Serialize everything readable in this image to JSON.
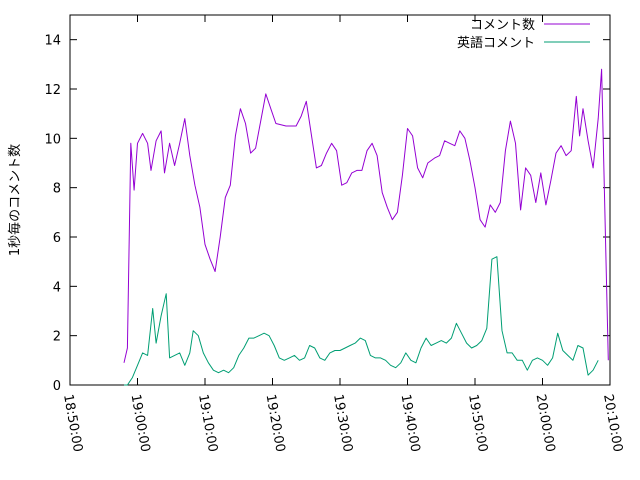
{
  "chart_data": {
    "type": "line",
    "title": "",
    "xlabel": "",
    "ylabel": "1秒毎のコメント数",
    "xlim": [
      "18:50:00",
      "20:10:00"
    ],
    "ylim": [
      0,
      15
    ],
    "x_ticks": [
      "18:50:00",
      "19:00:00",
      "19:10:00",
      "19:20:00",
      "19:30:00",
      "19:40:00",
      "19:50:00",
      "20:00:00",
      "20:10:00"
    ],
    "y_ticks": [
      0,
      2,
      4,
      6,
      8,
      10,
      12,
      14
    ],
    "grid": false,
    "legend_position": "top-right",
    "series": [
      {
        "name": "コメント数",
        "color": "#9400d3",
        "points": [
          [
            "18:58:00",
            0.9
          ],
          [
            "18:58:30",
            1.5
          ],
          [
            "18:59:00",
            9.8
          ],
          [
            "18:59:30",
            7.9
          ],
          [
            "19:00:00",
            9.8
          ],
          [
            "19:00:45",
            10.2
          ],
          [
            "19:01:30",
            9.8
          ],
          [
            "19:02:00",
            8.7
          ],
          [
            "19:02:45",
            9.9
          ],
          [
            "19:03:30",
            10.3
          ],
          [
            "19:04:00",
            8.6
          ],
          [
            "19:04:45",
            9.8
          ],
          [
            "19:05:30",
            8.9
          ],
          [
            "19:06:15",
            9.8
          ],
          [
            "19:07:00",
            10.8
          ],
          [
            "19:07:45",
            9.3
          ],
          [
            "19:08:30",
            8.1
          ],
          [
            "19:09:15",
            7.2
          ],
          [
            "19:10:00",
            5.7
          ],
          [
            "19:10:45",
            5.1
          ],
          [
            "19:11:30",
            4.6
          ],
          [
            "19:12:15",
            6.0
          ],
          [
            "19:13:00",
            7.6
          ],
          [
            "19:13:45",
            8.1
          ],
          [
            "19:14:30",
            10.1
          ],
          [
            "19:15:15",
            11.2
          ],
          [
            "19:16:00",
            10.6
          ],
          [
            "19:16:45",
            9.4
          ],
          [
            "19:17:30",
            9.6
          ],
          [
            "19:18:15",
            10.7
          ],
          [
            "19:19:00",
            11.8
          ],
          [
            "19:19:45",
            11.2
          ],
          [
            "19:20:30",
            10.6
          ],
          [
            "19:22:00",
            10.5
          ],
          [
            "19:23:30",
            10.5
          ],
          [
            "19:24:15",
            10.9
          ],
          [
            "19:25:00",
            11.5
          ],
          [
            "19:26:30",
            8.8
          ],
          [
            "19:27:15",
            8.9
          ],
          [
            "19:28:00",
            9.4
          ],
          [
            "19:28:45",
            9.8
          ],
          [
            "19:29:30",
            9.5
          ],
          [
            "19:30:15",
            8.1
          ],
          [
            "19:31:00",
            8.2
          ],
          [
            "19:31:45",
            8.6
          ],
          [
            "19:32:30",
            8.7
          ],
          [
            "19:33:15",
            8.7
          ],
          [
            "19:34:00",
            9.5
          ],
          [
            "19:34:45",
            9.8
          ],
          [
            "19:35:30",
            9.3
          ],
          [
            "19:36:15",
            7.8
          ],
          [
            "19:37:00",
            7.2
          ],
          [
            "19:37:45",
            6.7
          ],
          [
            "19:38:30",
            7.0
          ],
          [
            "19:39:15",
            8.5
          ],
          [
            "19:40:00",
            10.4
          ],
          [
            "19:40:45",
            10.1
          ],
          [
            "19:41:30",
            8.8
          ],
          [
            "19:42:15",
            8.4
          ],
          [
            "19:43:00",
            9.0
          ],
          [
            "19:44:00",
            9.2
          ],
          [
            "19:44:45",
            9.3
          ],
          [
            "19:45:30",
            9.9
          ],
          [
            "19:46:15",
            9.8
          ],
          [
            "19:47:00",
            9.7
          ],
          [
            "19:47:45",
            10.3
          ],
          [
            "19:48:30",
            10.0
          ],
          [
            "19:49:15",
            9.1
          ],
          [
            "19:50:00",
            8.0
          ],
          [
            "19:50:45",
            6.7
          ],
          [
            "19:51:30",
            6.4
          ],
          [
            "19:52:15",
            7.3
          ],
          [
            "19:53:00",
            7.0
          ],
          [
            "19:53:45",
            7.4
          ],
          [
            "19:54:30",
            9.5
          ],
          [
            "19:55:15",
            10.7
          ],
          [
            "19:56:00",
            9.8
          ],
          [
            "19:56:45",
            7.1
          ],
          [
            "19:57:30",
            8.8
          ],
          [
            "19:58:15",
            8.5
          ],
          [
            "19:59:00",
            7.4
          ],
          [
            "19:59:45",
            8.6
          ],
          [
            "20:00:30",
            7.3
          ],
          [
            "20:01:15",
            8.3
          ],
          [
            "20:02:00",
            9.4
          ],
          [
            "20:02:45",
            9.7
          ],
          [
            "20:03:30",
            9.3
          ],
          [
            "20:04:15",
            9.5
          ],
          [
            "20:05:00",
            11.7
          ],
          [
            "20:05:30",
            10.1
          ],
          [
            "20:06:00",
            11.2
          ],
          [
            "20:06:45",
            9.9
          ],
          [
            "20:07:30",
            8.8
          ],
          [
            "20:08:15",
            10.8
          ],
          [
            "20:08:45",
            12.8
          ],
          [
            "20:09:45",
            1.0
          ]
        ]
      },
      {
        "name": "英語コメント",
        "color": "#009e73",
        "points": [
          [
            "18:58:00",
            0.0
          ],
          [
            "18:58:30",
            0.0
          ],
          [
            "18:59:15",
            0.3
          ],
          [
            "19:00:00",
            0.8
          ],
          [
            "19:00:45",
            1.3
          ],
          [
            "19:01:30",
            1.2
          ],
          [
            "19:02:15",
            3.1
          ],
          [
            "19:02:45",
            1.7
          ],
          [
            "19:03:30",
            2.8
          ],
          [
            "19:04:15",
            3.7
          ],
          [
            "19:04:45",
            1.1
          ],
          [
            "19:05:30",
            1.2
          ],
          [
            "19:06:15",
            1.3
          ],
          [
            "19:07:00",
            0.8
          ],
          [
            "19:07:45",
            1.3
          ],
          [
            "19:08:15",
            2.2
          ],
          [
            "19:09:00",
            2.0
          ],
          [
            "19:09:45",
            1.3
          ],
          [
            "19:10:30",
            0.9
          ],
          [
            "19:11:15",
            0.6
          ],
          [
            "19:12:00",
            0.5
          ],
          [
            "19:12:45",
            0.6
          ],
          [
            "19:13:30",
            0.5
          ],
          [
            "19:14:15",
            0.7
          ],
          [
            "19:15:00",
            1.2
          ],
          [
            "19:15:45",
            1.5
          ],
          [
            "19:16:30",
            1.9
          ],
          [
            "19:17:15",
            1.9
          ],
          [
            "19:18:00",
            2.0
          ],
          [
            "19:18:45",
            2.1
          ],
          [
            "19:19:30",
            2.0
          ],
          [
            "19:20:15",
            1.6
          ],
          [
            "19:21:00",
            1.1
          ],
          [
            "19:21:45",
            1.0
          ],
          [
            "19:22:30",
            1.1
          ],
          [
            "19:23:15",
            1.2
          ],
          [
            "19:24:00",
            1.0
          ],
          [
            "19:24:45",
            1.1
          ],
          [
            "19:25:30",
            1.6
          ],
          [
            "19:26:15",
            1.5
          ],
          [
            "19:27:00",
            1.1
          ],
          [
            "19:27:45",
            1.0
          ],
          [
            "19:28:30",
            1.3
          ],
          [
            "19:29:15",
            1.4
          ],
          [
            "19:30:00",
            1.4
          ],
          [
            "19:30:45",
            1.5
          ],
          [
            "19:31:30",
            1.6
          ],
          [
            "19:32:15",
            1.7
          ],
          [
            "19:33:00",
            1.9
          ],
          [
            "19:33:45",
            1.8
          ],
          [
            "19:34:30",
            1.2
          ],
          [
            "19:35:15",
            1.1
          ],
          [
            "19:36:00",
            1.1
          ],
          [
            "19:36:45",
            1.0
          ],
          [
            "19:37:30",
            0.8
          ],
          [
            "19:38:15",
            0.7
          ],
          [
            "19:39:00",
            0.9
          ],
          [
            "19:39:45",
            1.3
          ],
          [
            "19:40:30",
            1.0
          ],
          [
            "19:41:15",
            0.9
          ],
          [
            "19:42:00",
            1.5
          ],
          [
            "19:42:45",
            1.9
          ],
          [
            "19:43:30",
            1.6
          ],
          [
            "19:44:15",
            1.7
          ],
          [
            "19:45:00",
            1.8
          ],
          [
            "19:45:45",
            1.7
          ],
          [
            "19:46:30",
            1.9
          ],
          [
            "19:47:15",
            2.5
          ],
          [
            "19:48:00",
            2.1
          ],
          [
            "19:48:45",
            1.7
          ],
          [
            "19:49:30",
            1.5
          ],
          [
            "19:50:15",
            1.6
          ],
          [
            "19:51:00",
            1.8
          ],
          [
            "19:51:45",
            2.3
          ],
          [
            "19:52:30",
            5.1
          ],
          [
            "19:53:15",
            5.2
          ],
          [
            "19:54:00",
            2.2
          ],
          [
            "19:54:45",
            1.3
          ],
          [
            "19:55:30",
            1.3
          ],
          [
            "19:56:15",
            1.0
          ],
          [
            "19:57:00",
            1.0
          ],
          [
            "19:57:45",
            0.6
          ],
          [
            "19:58:30",
            1.0
          ],
          [
            "19:59:15",
            1.1
          ],
          [
            "20:00:00",
            1.0
          ],
          [
            "20:00:45",
            0.8
          ],
          [
            "20:01:30",
            1.1
          ],
          [
            "20:02:15",
            2.1
          ],
          [
            "20:03:00",
            1.4
          ],
          [
            "20:03:45",
            1.2
          ],
          [
            "20:04:30",
            1.0
          ],
          [
            "20:05:15",
            1.6
          ],
          [
            "20:06:00",
            1.5
          ],
          [
            "20:06:45",
            0.4
          ],
          [
            "20:07:30",
            0.6
          ],
          [
            "20:08:15",
            1.0
          ]
        ]
      }
    ]
  }
}
